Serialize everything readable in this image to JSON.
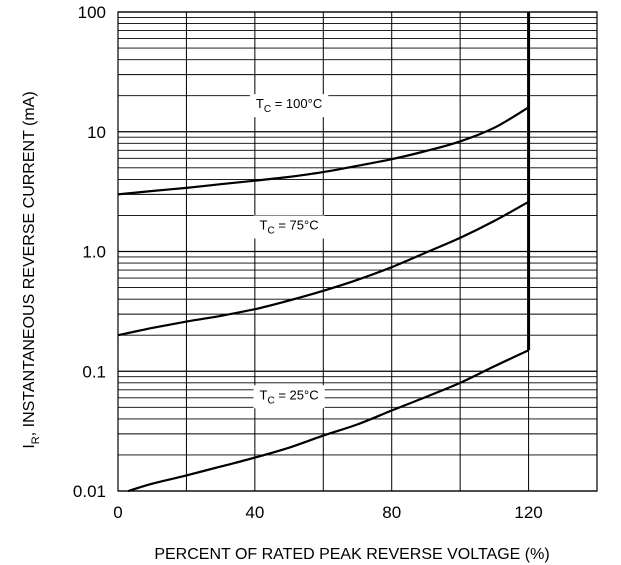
{
  "chart_data": {
    "type": "line",
    "title": "",
    "xlabel": "PERCENT OF RATED PEAK REVERSE VOLTAGE (%)",
    "ylabel_prefix": "I",
    "ylabel_sub": "R",
    "ylabel_rest": ", INSTANTANEOUS REVERSE CURRENT (mA)",
    "xlim": [
      0,
      140
    ],
    "ylim": [
      0.01,
      100
    ],
    "yscale": "log",
    "grid": true,
    "x_ticks": [
      {
        "value": 0,
        "label": "0"
      },
      {
        "value": 40,
        "label": "40"
      },
      {
        "value": 80,
        "label": "80"
      },
      {
        "value": 120,
        "label": "120"
      }
    ],
    "y_ticks": [
      {
        "value": 0.01,
        "label": "0.01"
      },
      {
        "value": 0.1,
        "label": "0.1"
      },
      {
        "value": 1,
        "label": "1.0"
      },
      {
        "value": 10,
        "label": "10"
      },
      {
        "value": 100,
        "label": "100"
      }
    ],
    "boundary": {
      "x": 120,
      "y_from": 0.15,
      "y_to": 100
    },
    "series": [
      {
        "label_main": "T",
        "label_sub": "C",
        "label_rest": " = 100°C",
        "label_at": {
          "x": 50,
          "y": 17
        },
        "x": [
          0,
          10,
          20,
          30,
          40,
          50,
          60,
          70,
          80,
          90,
          100,
          110,
          120
        ],
        "y": [
          3.0,
          3.2,
          3.4,
          3.65,
          3.9,
          4.2,
          4.6,
          5.2,
          5.9,
          6.9,
          8.3,
          10.8,
          16
        ]
      },
      {
        "label_main": "T",
        "label_sub": "C",
        "label_rest": " = 75°C",
        "label_at": {
          "x": 50,
          "y": 1.65
        },
        "x": [
          0,
          10,
          20,
          30,
          40,
          50,
          60,
          70,
          80,
          90,
          100,
          110,
          120
        ],
        "y": [
          0.2,
          0.23,
          0.26,
          0.29,
          0.33,
          0.39,
          0.47,
          0.58,
          0.74,
          0.98,
          1.3,
          1.8,
          2.6
        ]
      },
      {
        "label_main": "T",
        "label_sub": "C",
        "label_rest": " = 25°C",
        "label_at": {
          "x": 50,
          "y": 0.063
        },
        "x": [
          3,
          10,
          20,
          30,
          40,
          50,
          60,
          70,
          80,
          90,
          100,
          110,
          120
        ],
        "y": [
          0.01,
          0.0115,
          0.0135,
          0.016,
          0.019,
          0.023,
          0.029,
          0.036,
          0.047,
          0.061,
          0.08,
          0.11,
          0.15
        ]
      }
    ]
  }
}
